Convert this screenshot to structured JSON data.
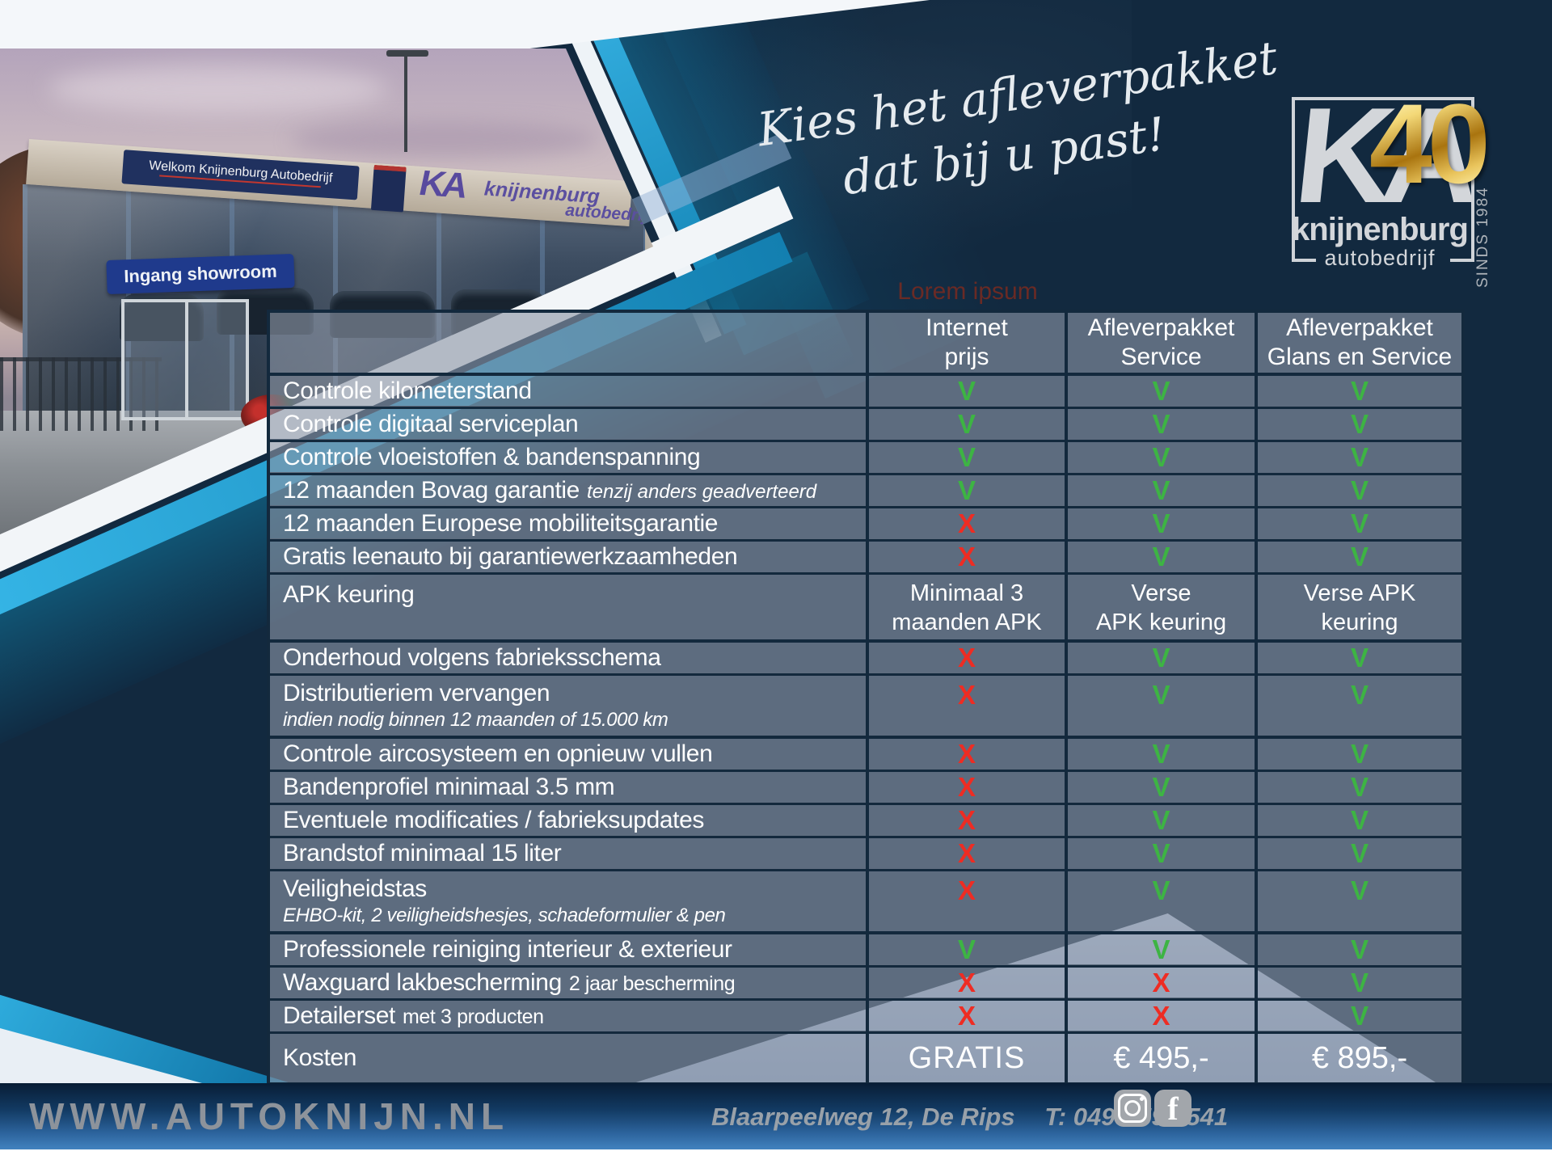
{
  "heading": {
    "line1": "Kies het afleverpakket",
    "line2": "dat bij u past!"
  },
  "watermark": "Lorem ipsum",
  "logo": {
    "ka": "KA",
    "badge": "40",
    "name": "knijnenburg",
    "sub": "autobedrijf",
    "since": "SINDS 1984"
  },
  "photo": {
    "welcome_sign": "Welkom Knijnenburg Autobedrijf",
    "entrance_sign": "Ingang showroom",
    "fascia_ka": "KA",
    "fascia_name": "knijnenburg",
    "fascia_sub": "autobedrijf"
  },
  "table": {
    "columns": [
      {
        "key": "internet",
        "line1": "Internet",
        "line2": "prijs"
      },
      {
        "key": "service",
        "line1": "Afleverpakket",
        "line2": "Service"
      },
      {
        "key": "glans",
        "line1": "Afleverpakket",
        "line2": "Glans en Service"
      }
    ],
    "rows": [
      {
        "kind": "check",
        "label": "Controle kilometerstand",
        "values": [
          "V",
          "V",
          "V"
        ]
      },
      {
        "kind": "check",
        "label": "Controle digitaal serviceplan",
        "values": [
          "V",
          "V",
          "V"
        ]
      },
      {
        "kind": "check",
        "label": "Controle vloeistoffen & bandenspanning",
        "values": [
          "V",
          "V",
          "V"
        ]
      },
      {
        "kind": "check",
        "label": "12 maanden Bovag garantie",
        "suffix_italic": "tenzij anders geadverteerd",
        "values": [
          "V",
          "V",
          "V"
        ]
      },
      {
        "kind": "check",
        "label": "12 maanden Europese mobiliteitsgarantie",
        "values": [
          "X",
          "V",
          "V"
        ]
      },
      {
        "kind": "check",
        "label": "Gratis leenauto bij garantiewerkzaamheden",
        "values": [
          "X",
          "V",
          "V"
        ]
      },
      {
        "kind": "text",
        "label": "APK keuring",
        "values": [
          [
            "Minimaal 3",
            "maanden APK"
          ],
          [
            "Verse",
            "APK keuring"
          ],
          [
            "Verse APK",
            "keuring"
          ]
        ]
      },
      {
        "kind": "check",
        "label": "Onderhoud volgens fabrieksschema",
        "values": [
          "X",
          "V",
          "V"
        ]
      },
      {
        "kind": "check",
        "label": "Distributieriem vervangen",
        "sub": "indien nodig binnen 12 maanden of 15.000 km",
        "values": [
          "X",
          "V",
          "V"
        ]
      },
      {
        "kind": "check",
        "label": "Controle aircosysteem en opnieuw vullen",
        "values": [
          "X",
          "V",
          "V"
        ]
      },
      {
        "kind": "check",
        "label": "Bandenprofiel minimaal 3.5 mm",
        "values": [
          "X",
          "V",
          "V"
        ]
      },
      {
        "kind": "check",
        "label": "Eventuele modificaties / fabrieksupdates",
        "values": [
          "X",
          "V",
          "V"
        ]
      },
      {
        "kind": "check",
        "label": "Brandstof minimaal 15 liter",
        "values": [
          "X",
          "V",
          "V"
        ]
      },
      {
        "kind": "check",
        "label": "Veiligheidstas",
        "sub": "EHBO-kit, 2 veiligheidshesjes, schadeformulier & pen",
        "values": [
          "X",
          "V",
          "V"
        ]
      },
      {
        "kind": "check",
        "label": "Professionele reiniging interieur & exterieur",
        "values": [
          "V",
          "V",
          "V"
        ]
      },
      {
        "kind": "check",
        "label": "Waxguard lakbescherming",
        "suffix_small": "2 jaar bescherming",
        "values": [
          "X",
          "X",
          "V"
        ]
      },
      {
        "kind": "check",
        "label": "Detailerset",
        "suffix_small": "met 3 producten",
        "values": [
          "X",
          "X",
          "V"
        ]
      },
      {
        "kind": "price",
        "label": "Kosten",
        "values": [
          "GRATIS",
          "€ 495,-",
          "€ 895,-"
        ]
      }
    ]
  },
  "footer": {
    "website": "WWW.AUTOKNIJN.NL",
    "address": "Blaarpeelweg 12, De Rips",
    "phone": "T: 0493-599 541",
    "facebook_glyph": "f"
  },
  "colors": {
    "check_green": "#3db443",
    "cross_red": "#ee2c23",
    "accent_cyan": "#2fb3e3",
    "background_navy": "#12293f"
  }
}
